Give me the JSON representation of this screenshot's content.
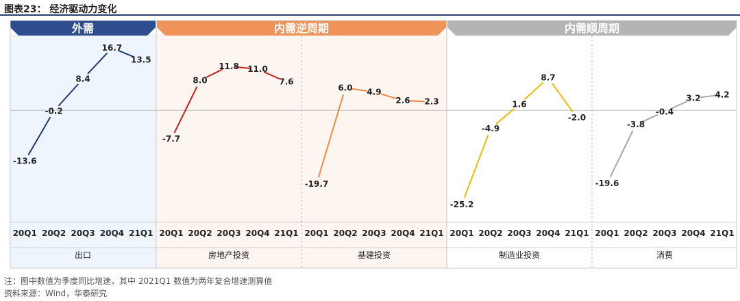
{
  "title": "图表23： 经济驱动力变化",
  "groups": [
    {
      "label": "外需",
      "color": "#2e4d8f",
      "bg": "#eef5fc"
    },
    {
      "label": "内需逆周期",
      "color": "#f0935a",
      "bg": "#fdf5f0"
    },
    {
      "label": "内需顺周期",
      "color": "#b4b4b4",
      "bg": "#ffffff"
    }
  ],
  "chart_data": {
    "type": "line",
    "categories": [
      "20Q1",
      "20Q2",
      "20Q3",
      "20Q4",
      "21Q1"
    ],
    "series": [
      {
        "name": "出口",
        "color": "#1f3a78",
        "values": [
          -13.6,
          -0.2,
          8.4,
          16.7,
          13.5
        ]
      },
      {
        "name": "房地产投资",
        "color": "#c81e1e",
        "values": [
          -7.7,
          8.0,
          11.8,
          11.0,
          7.6
        ]
      },
      {
        "name": "基建投资",
        "color": "#f0883e",
        "values": [
          -19.7,
          6.0,
          4.9,
          2.6,
          2.3
        ]
      },
      {
        "name": "制造业投资",
        "color": "#f5b800",
        "values": [
          -25.2,
          -4.9,
          1.6,
          8.7,
          -2.0
        ]
      },
      {
        "name": "消费",
        "color": "#a6a6a6",
        "values": [
          -19.6,
          -3.8,
          -0.4,
          3.2,
          4.2
        ]
      }
    ],
    "ylim": [
      -30,
      20
    ],
    "grid": false
  },
  "notes": [
    "注：图中数值为季度同比增速，其中 2021Q1 数值为两年复合增速测算值",
    "资料来源：Wind，华泰研究"
  ]
}
